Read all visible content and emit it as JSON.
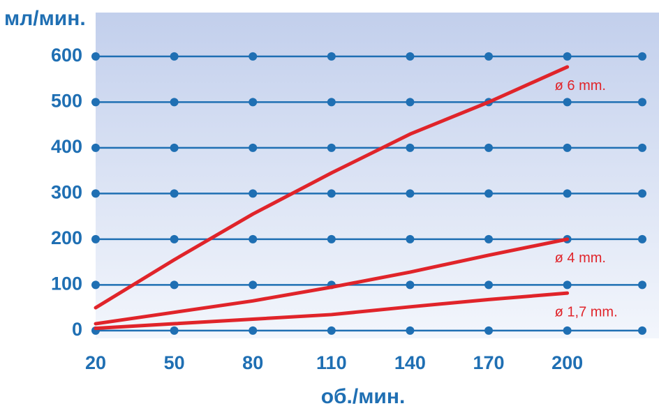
{
  "chart_data": {
    "type": "line",
    "title": "мл/мин.",
    "x_label": "об./мин.",
    "x": [
      20,
      50,
      80,
      110,
      140,
      170,
      200
    ],
    "series": [
      {
        "name": "ø 6 mm.",
        "color": "#e0242a",
        "values": [
          50,
          155,
          255,
          345,
          430,
          500,
          577
        ]
      },
      {
        "name": "ø 4 mm.",
        "color": "#e0242a",
        "values": [
          15,
          40,
          65,
          95,
          128,
          165,
          200
        ]
      },
      {
        "name": "ø 1,7 mm.",
        "color": "#e0242a",
        "values": [
          5,
          15,
          25,
          35,
          52,
          68,
          82
        ]
      }
    ],
    "xlim": [
      20,
      235
    ],
    "ylim": [
      -17,
      696
    ],
    "xticks": [
      20,
      50,
      80,
      110,
      140,
      170,
      200
    ],
    "yticks": [
      0,
      100,
      200,
      300,
      400,
      500,
      600
    ],
    "grid": true,
    "grid_color": "#1f6fb3"
  }
}
